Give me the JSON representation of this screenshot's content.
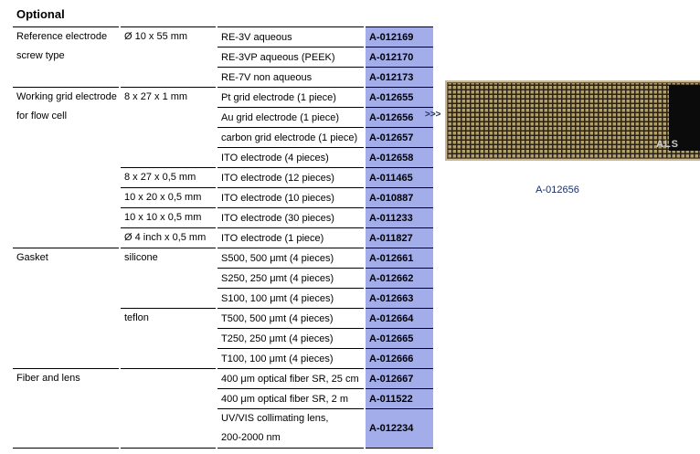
{
  "page": {
    "heading": "Optional",
    "arrow": ">>>",
    "photo_caption": "A-012656",
    "photo_als_label": "ALS"
  },
  "colors": {
    "code_cell_background": "#a3ade9",
    "caption_text": "#1c2f63",
    "table_border": "#000000"
  },
  "table": {
    "rows": [
      {
        "category": "Reference electrode\nscrew type",
        "size": "Ø 10 x 55 mm",
        "desc": "RE-3V aqueous",
        "code": "A-012169"
      },
      {
        "desc": "RE-3VP aqueous (PEEK)",
        "code": "A-012170"
      },
      {
        "desc": "RE-7V non aqueous",
        "code": "A-012173"
      },
      {
        "category": "Working grid electrode\nfor flow cell",
        "size": "8 x 27 x 1 mm",
        "desc": "Pt grid electrode (1 piece)",
        "code": "A-012655"
      },
      {
        "desc": "Au grid electrode (1 piece)",
        "code": "A-012656"
      },
      {
        "desc": "carbon grid electrode (1 piece)",
        "code": "A-012657"
      },
      {
        "desc": "ITO electrode (4 pieces)",
        "code": "A-012658"
      },
      {
        "size": "8 x 27 x 0,5 mm",
        "desc": "ITO electrode (12 pieces)",
        "code": "A-011465"
      },
      {
        "size": "10 x 20 x 0,5 mm",
        "desc": "ITO electrode (10 pieces)",
        "code": "A-010887"
      },
      {
        "size": "10 x 10 x 0,5 mm",
        "desc": "ITO electrode (30 pieces)",
        "code": "A-011233"
      },
      {
        "size": "Ø 4 inch x 0,5 mm",
        "desc": "ITO electrode (1 piece)",
        "code": "A-011827"
      },
      {
        "category": "Gasket",
        "size": "silicone",
        "desc": "S500, 500 μmt (4 pieces)",
        "code": "A-012661"
      },
      {
        "desc": "S250, 250 μmt (4 pieces)",
        "code": "A-012662"
      },
      {
        "desc": "S100, 100 μmt (4 pieces)",
        "code": "A-012663"
      },
      {
        "size": "teflon",
        "desc": "T500, 500 μmt (4 pieces)",
        "code": "A-012664"
      },
      {
        "desc": "T250, 250 μmt (4 pieces)",
        "code": "A-012665"
      },
      {
        "desc": "T100, 100 μmt (4 pieces)",
        "code": "A-012666"
      },
      {
        "category": "Fiber and lens",
        "size": "",
        "desc": "400 μm optical fiber SR, 25 cm",
        "code": "A-012667"
      },
      {
        "desc": "400 μm optical fiber SR, 2 m",
        "code": "A-011522"
      },
      {
        "desc": "UV/VIS collimating lens,\n200-2000 nm",
        "code": "A-012234"
      }
    ]
  }
}
